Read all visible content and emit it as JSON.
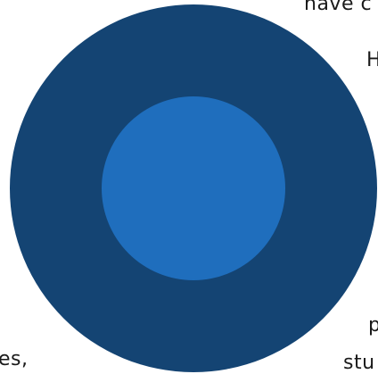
{
  "text_fragments": [
    "have c",
    "H",
    "p",
    "es,",
    "stu"
  ],
  "circle_graphic": {
    "outer_color": "#144473",
    "inner_color": "#1f6ebd"
  }
}
